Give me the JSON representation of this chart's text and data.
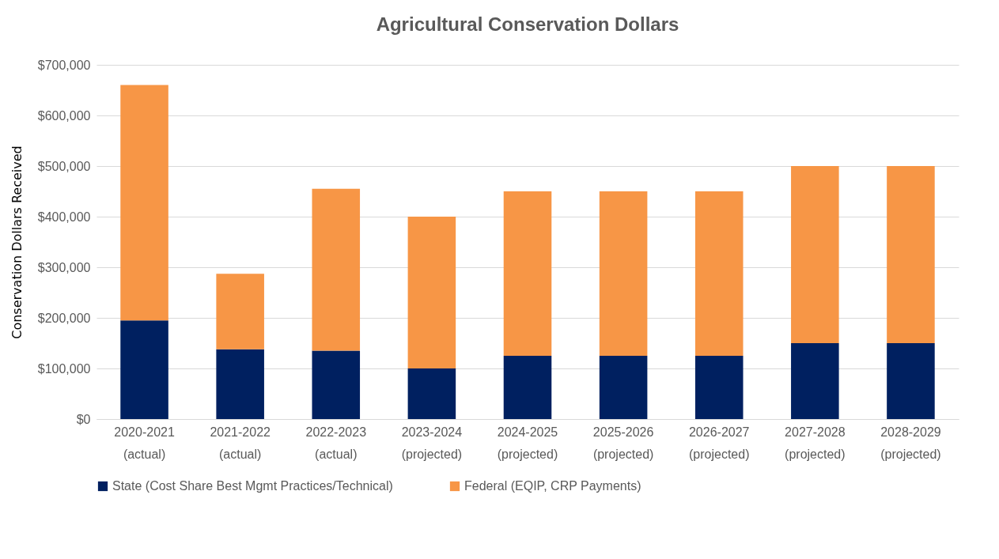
{
  "chart_data": {
    "type": "bar",
    "title": "Agricultural Conservation Dollars",
    "ylabel": "Conservation Dollars Received",
    "categories": [
      "2020-2021 (actual)",
      "2021-2022 (actual)",
      "2022-2023 (actual)",
      "2023-2024 (projected)",
      "2024-2025 (projected)",
      "2025-2026 (projected)",
      "2026-2027 (projected)",
      "2027-2028 (projected)",
      "2028-2029 (projected)"
    ],
    "stacked": true,
    "series": [
      {
        "name": "State (Cost Share Best Mgmt Practices/Technical)",
        "color": "#002060",
        "values": [
          195000,
          138000,
          135000,
          100000,
          125000,
          125000,
          125000,
          150000,
          150000
        ]
      },
      {
        "name": "Federal (EQIP, CRP Payments)",
        "color": "#f79646",
        "values": [
          465000,
          149000,
          320000,
          300000,
          325000,
          325000,
          325000,
          350000,
          350000
        ]
      }
    ],
    "ylim": [
      0,
      700000
    ],
    "yticks": [
      {
        "value": 0,
        "label": "$0"
      },
      {
        "value": 100000,
        "label": "$100,000"
      },
      {
        "value": 200000,
        "label": "$200,000"
      },
      {
        "value": 300000,
        "label": "$300,000"
      },
      {
        "value": 400000,
        "label": "$400,000"
      },
      {
        "value": 500000,
        "label": "$500,000"
      },
      {
        "value": 600000,
        "label": "$600,000"
      },
      {
        "value": 700000,
        "label": "$700,000"
      }
    ],
    "grid": "y",
    "legend": "bottom"
  }
}
